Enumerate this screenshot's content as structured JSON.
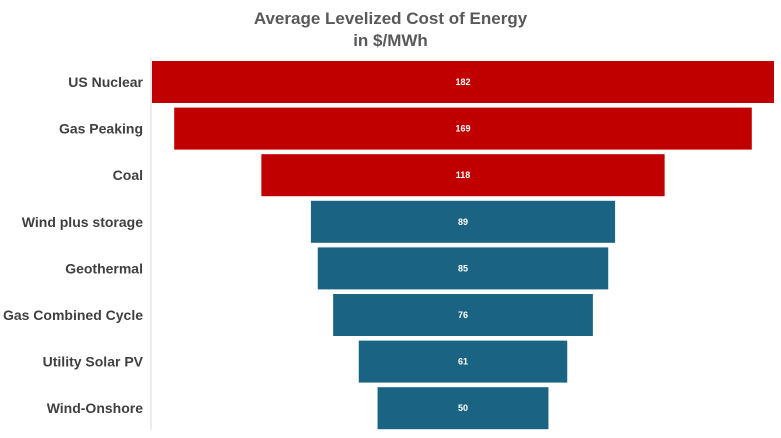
{
  "chart_data": {
    "type": "bar",
    "orientation": "horizontal",
    "layout": "funnel",
    "title": "Average Levelized Cost of Energy",
    "subtitle": "in $/MWh",
    "categories": [
      "US Nuclear",
      "Gas Peaking",
      "Coal",
      "Wind plus storage",
      "Geothermal",
      "Gas Combined Cycle",
      "Utility Solar PV",
      "Wind-Onshore"
    ],
    "values": [
      182,
      169,
      118,
      89,
      85,
      76,
      61,
      50
    ],
    "data_labels": [
      "182",
      "169",
      "118",
      "89",
      "85",
      "76",
      "61",
      "50"
    ],
    "bar_colors": [
      "#c00000",
      "#c00000",
      "#c00000",
      "#1b6382",
      "#1b6382",
      "#1b6382",
      "#1b6382",
      "#1b6382"
    ],
    "grid": false,
    "legend": "none"
  }
}
